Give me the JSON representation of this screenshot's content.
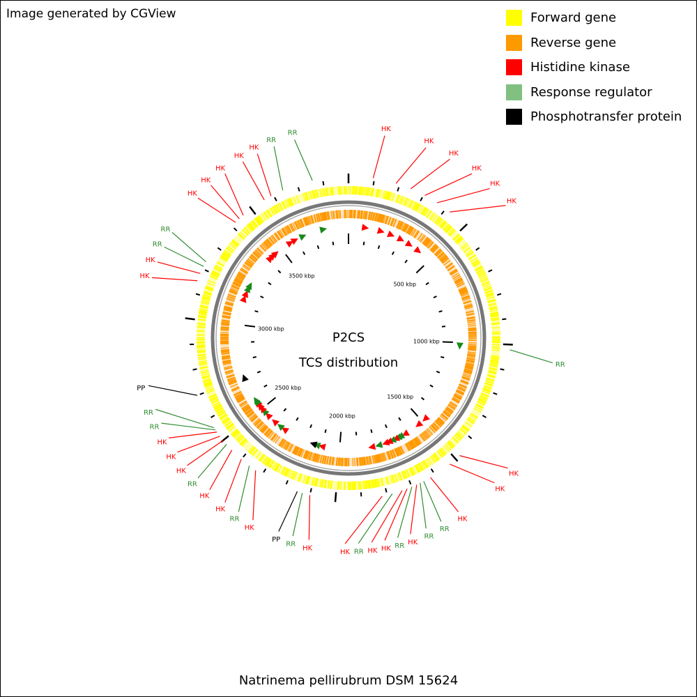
{
  "credit": "Image generated by CGView",
  "title": "P2CS",
  "subtitle": "TCS distribution",
  "organism": "Natrinema pellirubrum DSM 15624",
  "genome_length_kbp": 3900,
  "legend": [
    {
      "label": "Forward gene",
      "color": "#ffff00"
    },
    {
      "label": "Reverse gene",
      "color": "#ff9900"
    },
    {
      "label": "Histidine kinase",
      "color": "#ff0000"
    },
    {
      "label": "Response regulator",
      "color": "#80c080"
    },
    {
      "label": "Phosphotransfer protein",
      "color": "#000000"
    }
  ],
  "scale_ticks": [
    {
      "pos": 500,
      "label": "500 kbp"
    },
    {
      "pos": 1000,
      "label": "1000 kbp"
    },
    {
      "pos": 1500,
      "label": "1500 kbp"
    },
    {
      "pos": 2000,
      "label": "2000 kbp"
    },
    {
      "pos": 2500,
      "label": "2500 kbp"
    },
    {
      "pos": 3000,
      "label": "3000 kbp"
    },
    {
      "pos": 3500,
      "label": "3500 kbp"
    }
  ],
  "features": [
    {
      "type": "HK",
      "pos": 95,
      "label_pos": 110
    },
    {
      "type": "HK",
      "pos": 185,
      "label_pos": 240
    },
    {
      "type": "HK",
      "pos": 245,
      "label_pos": 320
    },
    {
      "type": "HK",
      "pos": 305,
      "label_pos": 400
    },
    {
      "type": "HK",
      "pos": 360,
      "label_pos": 470
    },
    {
      "type": "HK",
      "pos": 420,
      "label_pos": 540
    },
    {
      "type": "RR",
      "pos": 1020,
      "label_pos": 1050
    },
    {
      "type": "HK",
      "pos": 1480,
      "label_pos": 1400
    },
    {
      "type": "HK",
      "pos": 1530,
      "label_pos": 1460
    },
    {
      "type": "HK",
      "pos": 1620,
      "label_pos": 1600
    },
    {
      "type": "RR",
      "pos": 1650,
      "label_pos": 1660
    },
    {
      "type": "RR",
      "pos": 1665,
      "label_pos": 1710
    },
    {
      "type": "HK",
      "pos": 1680,
      "label_pos": 1760
    },
    {
      "type": "RR",
      "pos": 1700,
      "label_pos": 1800
    },
    {
      "type": "HK",
      "pos": 1720,
      "label_pos": 1840
    },
    {
      "type": "HK",
      "pos": 1740,
      "label_pos": 1880
    },
    {
      "type": "RR",
      "pos": 1780,
      "label_pos": 1920
    },
    {
      "type": "HK",
      "pos": 1820,
      "label_pos": 1960
    },
    {
      "type": "HK",
      "pos": 2100,
      "label_pos": 2070
    },
    {
      "type": "RR",
      "pos": 2130,
      "label_pos": 2120
    },
    {
      "type": "PP",
      "pos": 2150,
      "label_pos": 2165
    },
    {
      "type": "HK",
      "pos": 2330,
      "label_pos": 2250
    },
    {
      "type": "RR",
      "pos": 2360,
      "label_pos": 2300
    },
    {
      "type": "HK",
      "pos": 2400,
      "label_pos": 2350
    },
    {
      "type": "HK",
      "pos": 2450,
      "label_pos": 2410
    },
    {
      "type": "RR",
      "pos": 2480,
      "label_pos": 2460
    },
    {
      "type": "HK",
      "pos": 2500,
      "label_pos": 2510
    },
    {
      "type": "HK",
      "pos": 2520,
      "label_pos": 2560
    },
    {
      "type": "HK",
      "pos": 2540,
      "label_pos": 2610
    },
    {
      "type": "RR",
      "pos": 2550,
      "label_pos": 2660
    },
    {
      "type": "RR",
      "pos": 2560,
      "label_pos": 2705
    },
    {
      "type": "PP",
      "pos": 2700,
      "label_pos": 2780
    },
    {
      "type": "HK",
      "pos": 3150,
      "label_pos": 3110
    },
    {
      "type": "HK",
      "pos": 3180,
      "label_pos": 3160
    },
    {
      "type": "RR",
      "pos": 3210,
      "label_pos": 3210
    },
    {
      "type": "RR",
      "pos": 3230,
      "label_pos": 3260
    },
    {
      "type": "HK",
      "pos": 3420,
      "label_pos": 3390
    },
    {
      "type": "HK",
      "pos": 3440,
      "label_pos": 3445
    },
    {
      "type": "HK",
      "pos": 3460,
      "label_pos": 3500
    },
    {
      "type": "HK",
      "pos": 3560,
      "label_pos": 3565
    },
    {
      "type": "HK",
      "pos": 3590,
      "label_pos": 3615
    },
    {
      "type": "RR",
      "pos": 3640,
      "label_pos": 3670
    },
    {
      "type": "RR",
      "pos": 3760,
      "label_pos": 3735
    }
  ]
}
